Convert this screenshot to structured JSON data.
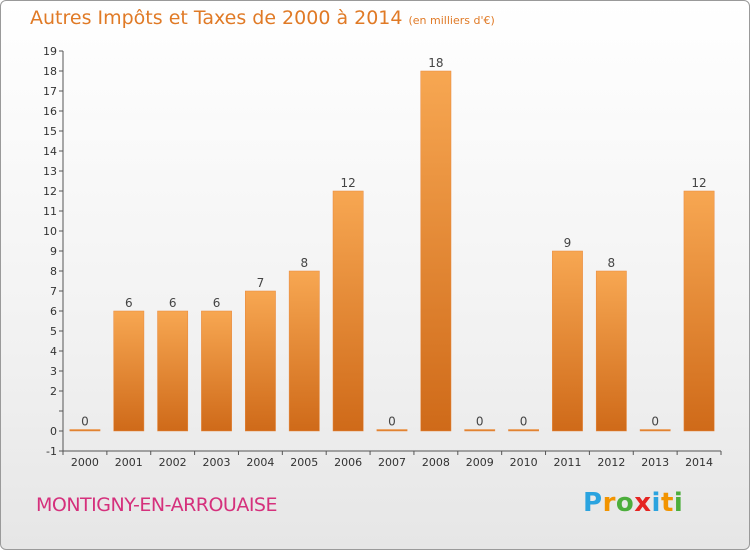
{
  "title": "Autres Impôts et Taxes de 2000 à 2014",
  "subtitle_unit": "(en milliers d'€)",
  "commune": "MONTIGNY-EN-ARROUAISE",
  "logo": {
    "letters": [
      "P",
      "r",
      "o",
      "x",
      "i",
      "t",
      "i"
    ],
    "colors": [
      "#2aa3df",
      "#f29400",
      "#4cae3c",
      "#e52421",
      "#2aa3df",
      "#f29400",
      "#4cae3c"
    ]
  },
  "chart_data": {
    "type": "bar",
    "title": "Autres Impôts et Taxes de 2000 à 2014",
    "xlabel": "",
    "ylabel": "",
    "categories": [
      "2000",
      "2001",
      "2002",
      "2003",
      "2004",
      "2005",
      "2006",
      "2007",
      "2008",
      "2009",
      "2010",
      "2011",
      "2012",
      "2013",
      "2014"
    ],
    "values": [
      0,
      6,
      6,
      6,
      7,
      8,
      12,
      0,
      18,
      0,
      0,
      9,
      8,
      0,
      12
    ],
    "data_labels": [
      "0",
      "6",
      "6",
      "6",
      "7",
      "8",
      "12",
      "0",
      "18",
      "0",
      "0",
      "9",
      "8",
      "0",
      "12"
    ],
    "ylim": [
      -1,
      19
    ],
    "y_ticks": [
      {
        "value": -1,
        "label": "-1"
      },
      {
        "value": 0,
        "label": "0"
      },
      {
        "value": 1,
        "label": ""
      },
      {
        "value": 2,
        "label": "2"
      },
      {
        "value": 3,
        "label": "3"
      },
      {
        "value": 4,
        "label": "4"
      },
      {
        "value": 5,
        "label": "5"
      },
      {
        "value": 6,
        "label": "6"
      },
      {
        "value": 7,
        "label": "7"
      },
      {
        "value": 8,
        "label": "8"
      },
      {
        "value": 9,
        "label": "9"
      },
      {
        "value": 10,
        "label": "10"
      },
      {
        "value": 11,
        "label": "11"
      },
      {
        "value": 12,
        "label": "12"
      },
      {
        "value": 13,
        "label": "13"
      },
      {
        "value": 14,
        "label": "14"
      },
      {
        "value": 15,
        "label": "15"
      },
      {
        "value": 16,
        "label": "16"
      },
      {
        "value": 17,
        "label": "17"
      },
      {
        "value": 18,
        "label": "18"
      },
      {
        "value": 19,
        "label": "19"
      }
    ],
    "grid": false,
    "bar_color": "#f0913a"
  }
}
